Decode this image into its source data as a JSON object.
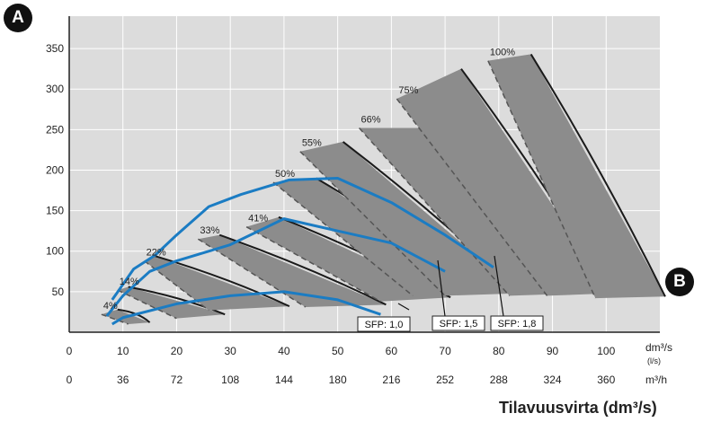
{
  "badges": {
    "a": "A",
    "b": "B"
  },
  "chart_data": {
    "type": "line",
    "title": "",
    "xlabel": "Tilavuusvirta (dm³/s)",
    "ylabel": "",
    "xlim": [
      0,
      110
    ],
    "ylim": [
      0,
      390
    ],
    "grid": true,
    "y_ticks": [
      50,
      100,
      150,
      200,
      250,
      300,
      350
    ],
    "x_ticks": [
      0,
      10,
      20,
      30,
      40,
      50,
      60,
      70,
      80,
      90,
      100
    ],
    "x_tick_labels": [
      "0",
      "10",
      "20",
      "30",
      "40",
      "50",
      "60",
      "70",
      "80",
      "90",
      "100"
    ],
    "x_unit_label": "dm³/s",
    "x_unit_sub": "(l/s)",
    "x2_tick_labels": [
      "0",
      "36",
      "72",
      "108",
      "144",
      "180",
      "216",
      "252",
      "288",
      "324",
      "360"
    ],
    "x2_unit_label": "m³/h",
    "speed_bands": [
      {
        "label": "4%",
        "top": [
          [
            6,
            22
          ],
          [
            9,
            28
          ]
        ],
        "bottom": [
          [
            11,
            10
          ],
          [
            15,
            12
          ]
        ]
      },
      {
        "label": "14%",
        "top": [
          [
            9,
            52
          ],
          [
            11,
            56
          ]
        ],
        "bottom": [
          [
            20,
            17
          ],
          [
            29,
            22
          ]
        ]
      },
      {
        "label": "22%",
        "top": [
          [
            14,
            88
          ],
          [
            16,
            94
          ]
        ],
        "bottom": [
          [
            26,
            27
          ],
          [
            41,
            32
          ]
        ]
      },
      {
        "label": "33%",
        "top": [
          [
            24,
            115
          ],
          [
            28,
            120
          ]
        ],
        "bottom": [
          [
            44,
            31
          ],
          [
            59,
            34
          ]
        ]
      },
      {
        "label": "41%",
        "top": [
          [
            33,
            130
          ],
          [
            39,
            142
          ]
        ],
        "bottom": [
          [
            58,
            38
          ],
          [
            71,
            43
          ]
        ]
      },
      {
        "label": "50%",
        "top": [
          [
            38,
            185
          ],
          [
            46,
            190
          ]
        ],
        "bottom": [
          [
            64,
            45
          ],
          [
            78,
            48
          ]
        ]
      },
      {
        "label": "55%",
        "top": [
          [
            43,
            223
          ],
          [
            51,
            235
          ]
        ],
        "bottom": [
          [
            70,
            45
          ],
          [
            84,
            48
          ]
        ]
      },
      {
        "label": "66%",
        "top": [
          [
            54,
            252
          ],
          [
            66,
            252
          ]
        ],
        "bottom": [
          [
            82,
            45
          ],
          [
            95,
            48
          ]
        ]
      },
      {
        "label": "75%",
        "top": [
          [
            61,
            288
          ],
          [
            73,
            325
          ]
        ],
        "bottom": [
          [
            89,
            45
          ],
          [
            101,
            48
          ]
        ]
      },
      {
        "label": "100%",
        "top": [
          [
            78,
            335
          ],
          [
            86,
            343
          ]
        ],
        "bottom": [
          [
            98,
            42
          ],
          [
            111,
            44
          ]
        ]
      }
    ],
    "series": [
      {
        "name": "SFP: 1,0",
        "x": [
          8,
          10,
          20,
          30,
          40,
          50,
          58
        ],
        "y": [
          10,
          18,
          35,
          45,
          50,
          40,
          22
        ]
      },
      {
        "name": "SFP: 1,5",
        "x": [
          7,
          10,
          15,
          20,
          30,
          40,
          50,
          60,
          70
        ],
        "y": [
          20,
          45,
          75,
          88,
          108,
          140,
          125,
          110,
          75
        ]
      },
      {
        "name": "SFP: 1,8",
        "x": [
          8,
          12,
          16,
          20,
          26,
          32,
          41,
          50,
          60,
          70,
          79
        ],
        "y": [
          40,
          78,
          95,
          120,
          155,
          170,
          188,
          190,
          160,
          120,
          80
        ]
      }
    ],
    "sfp_labels": [
      "SFP: 1,0",
      "SFP: 1,5",
      "SFP: 1,8"
    ],
    "colors": {
      "plot_bg": "#dcdcdc",
      "grid": "#ffffff",
      "band_fill": "#8c8c8c",
      "band_edge": "#1a1a1a",
      "sfp_line": "#1b7cc3",
      "axis": "#222222"
    }
  }
}
